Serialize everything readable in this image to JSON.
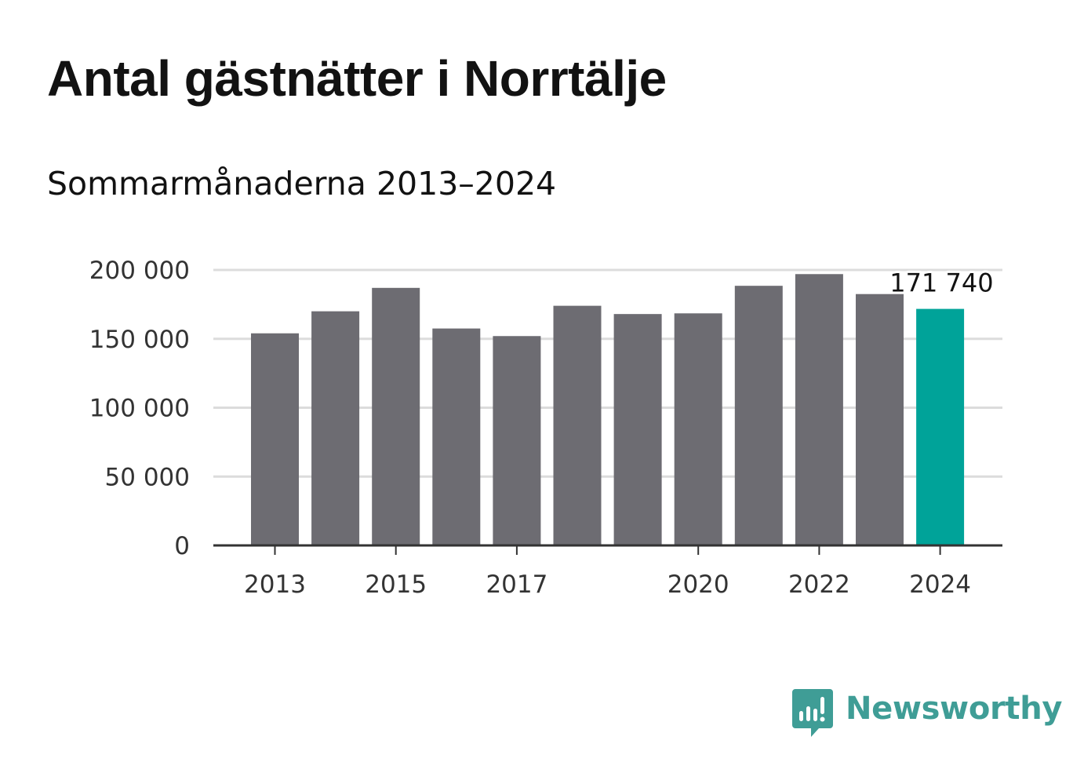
{
  "header": {
    "title": "Antal gästnätter i Norrtälje",
    "subtitle": "Sommarmånaderna 2013–2024"
  },
  "chart_data": {
    "type": "bar",
    "title": "Antal gästnätter i Norrtälje",
    "subtitle": "Sommarmånaderna 2013–2024",
    "categories": [
      "2013",
      "2014",
      "2015",
      "2016",
      "2017",
      "2018",
      "2019",
      "2020",
      "2021",
      "2022",
      "2023",
      "2024"
    ],
    "values": [
      154000,
      170000,
      187000,
      157500,
      152000,
      174000,
      168000,
      168500,
      188500,
      197000,
      182500,
      171740
    ],
    "x_tick_labels": [
      "2013",
      "2015",
      "2017",
      "2020",
      "2022",
      "2024"
    ],
    "y_ticks": [
      0,
      50000,
      100000,
      150000,
      200000
    ],
    "y_tick_labels": [
      "0",
      "50 000",
      "100 000",
      "150 000",
      "200 000"
    ],
    "ylim": [
      0,
      200000
    ],
    "grid": true,
    "xlabel": "",
    "ylabel": "",
    "annotation": {
      "category": "2024",
      "label": "171 740"
    },
    "colors": {
      "bar": "#6d6c72",
      "highlight": "#00a399",
      "grid": "#dcdcdc",
      "axis": "#333333"
    }
  },
  "brand": {
    "name": "Newsworthy",
    "color": "#3f9d96",
    "icon": "newsworthy-logo-icon"
  }
}
